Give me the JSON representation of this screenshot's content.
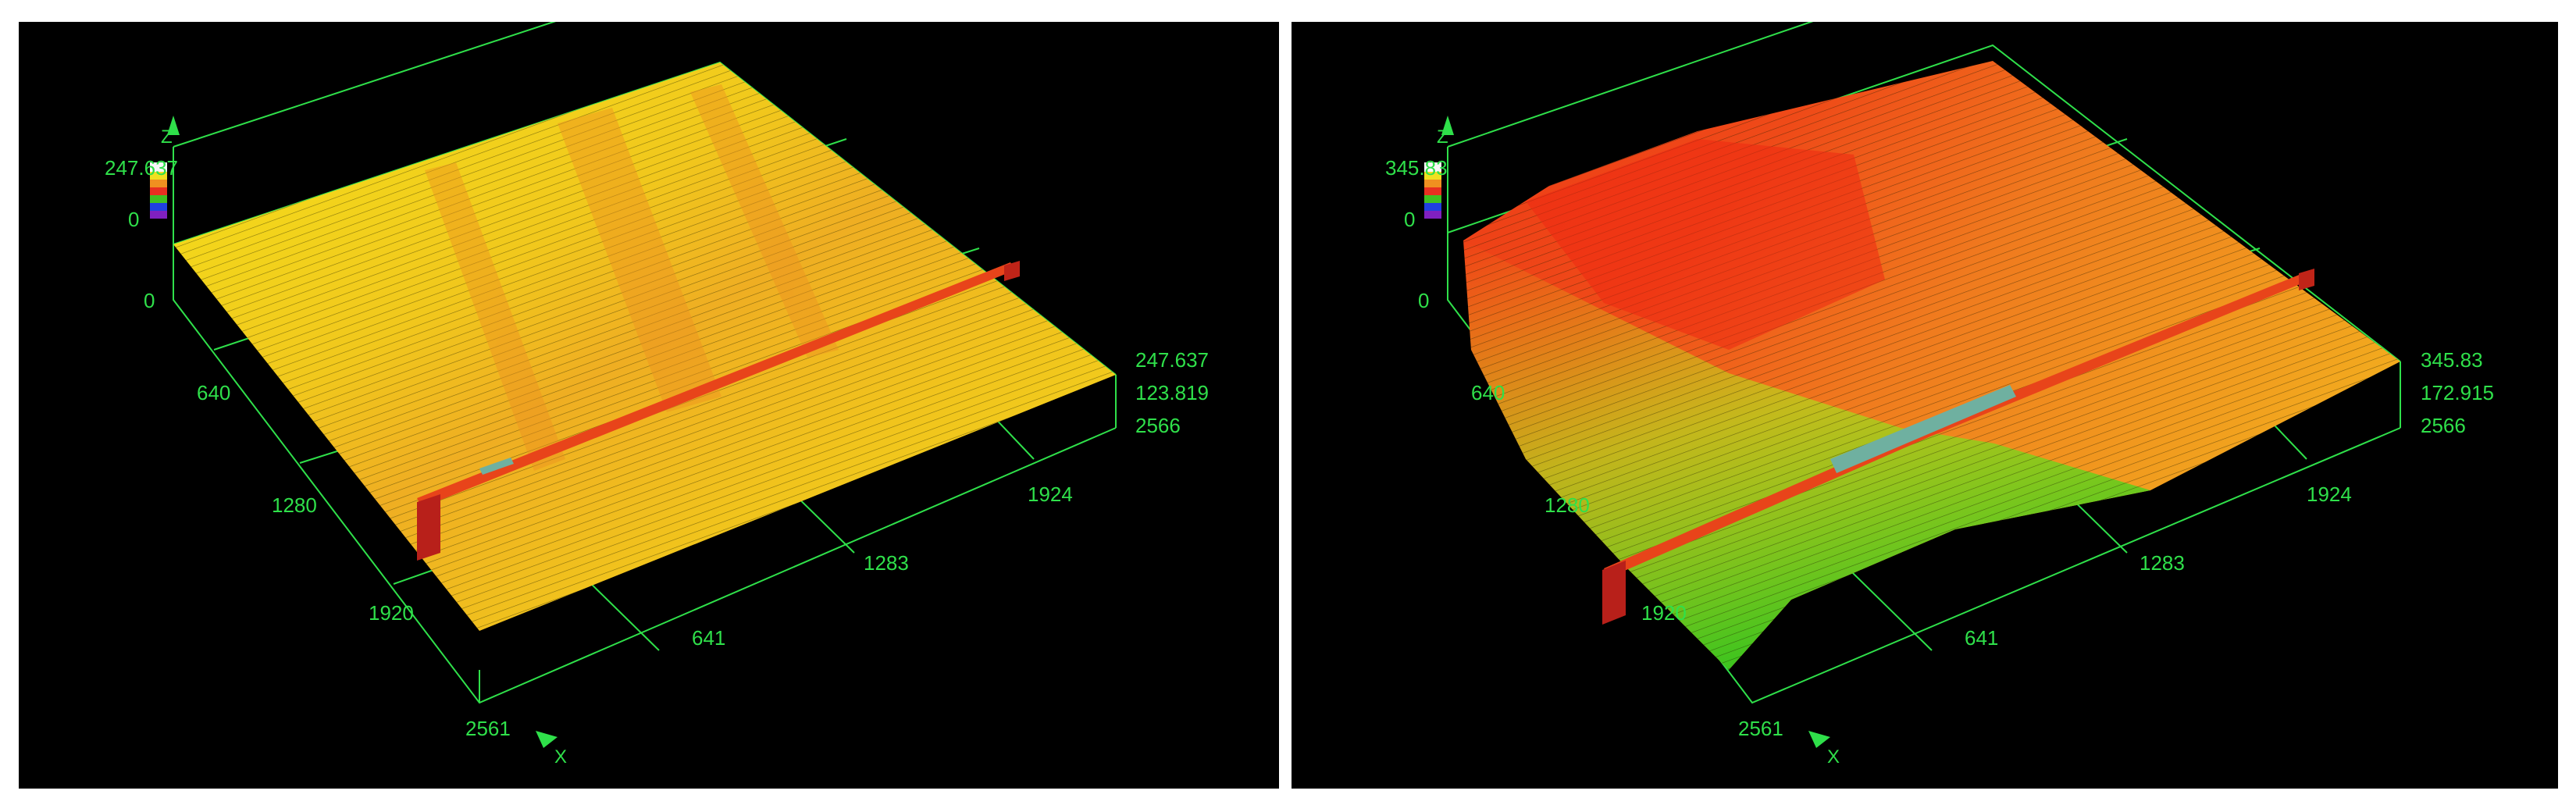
{
  "colors": {
    "background": "#000000",
    "axis_green": "#2fe04a",
    "surface_yellow": "#f2e21a",
    "surface_orange": "#f0961e",
    "surface_red": "#ef3a16",
    "surface_green": "#44d21e",
    "marker_red": "#c02418"
  },
  "panels": [
    {
      "z_axis_letter": "Z",
      "z_max": "247.637",
      "z_mid": "0",
      "z_zero": "0",
      "right_top": "247.637",
      "right_mid": "123.819",
      "right_bot": "2566",
      "y_ticks": [
        "640",
        "1280",
        "1920",
        "2561"
      ],
      "x_ticks": [
        "641",
        "1283",
        "1924"
      ],
      "x_axis_letter": "X"
    },
    {
      "z_axis_letter": "Z",
      "z_max": "345.83",
      "z_mid": "0",
      "z_zero": "0",
      "right_top": "345.83",
      "right_mid": "172.915",
      "right_bot": "2566",
      "y_ticks": [
        "640",
        "1280",
        "1920",
        "2561"
      ],
      "x_ticks": [
        "641",
        "1283",
        "1924"
      ],
      "x_axis_letter": "X"
    }
  ]
}
